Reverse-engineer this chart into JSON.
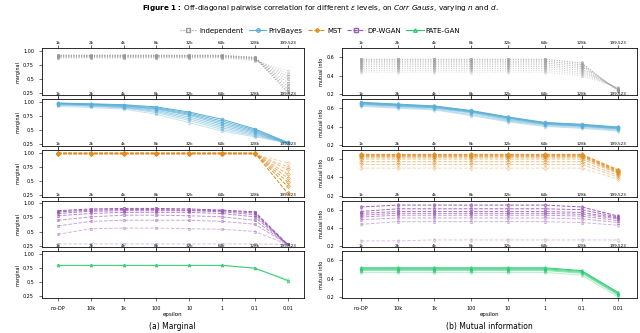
{
  "title_bold": "Figure 1:",
  "title_rest": " Off-diagonal pairwise correlation for different $\\epsilon$ levels, on $\\mathit{Corr\\ Gauss}$, varying $n$ and $d$.",
  "legend_labels": [
    "Independent",
    "PrivBayes",
    "MST",
    "DP-WGAN",
    "PATE-GAN"
  ],
  "row_colors": [
    "#999999",
    "#5bafd6",
    "#e08c20",
    "#9b59b6",
    "#2ecc71"
  ],
  "row_linestyles": [
    "dotted",
    "solid",
    "dashed",
    "dashed",
    "solid"
  ],
  "row_markers": [
    "s",
    "o",
    "D",
    "s",
    "^"
  ],
  "xlabel": "epsilon",
  "xtick_labels_bottom": [
    "no-DP",
    "10k",
    "1k",
    "100",
    "10",
    "1",
    "0.1",
    "0.01"
  ],
  "xtick_labels_top": [
    "1k",
    "2k",
    "4k",
    "8k",
    "32k",
    "64k",
    "128k",
    "199,523"
  ],
  "ylabel_marginal": "marginal",
  "ylabel_mutual": "mutual info",
  "subtitle_a": "(a) Marginal",
  "subtitle_b": "(b) Mutual information",
  "background": "#ffffff",
  "marginal_data": [
    {
      "lines": [
        [
          0.875,
          0.875,
          0.875,
          0.875,
          0.875,
          0.875,
          0.83,
          0.65
        ],
        [
          0.885,
          0.885,
          0.885,
          0.885,
          0.885,
          0.885,
          0.84,
          0.6
        ],
        [
          0.892,
          0.892,
          0.892,
          0.892,
          0.892,
          0.892,
          0.85,
          0.55
        ],
        [
          0.9,
          0.9,
          0.9,
          0.9,
          0.9,
          0.9,
          0.86,
          0.5
        ],
        [
          0.908,
          0.908,
          0.908,
          0.908,
          0.908,
          0.908,
          0.87,
          0.44
        ],
        [
          0.913,
          0.913,
          0.913,
          0.913,
          0.913,
          0.913,
          0.875,
          0.38
        ],
        [
          0.92,
          0.92,
          0.92,
          0.92,
          0.92,
          0.92,
          0.88,
          0.32
        ],
        [
          0.927,
          0.927,
          0.927,
          0.927,
          0.927,
          0.927,
          0.89,
          0.27
        ]
      ],
      "ylim": [
        0.22,
        1.05
      ],
      "yticks": [
        0.25,
        0.5,
        0.75,
        1.0
      ]
    },
    {
      "lines": [
        [
          0.92,
          0.9,
          0.87,
          0.78,
          0.63,
          0.48,
          0.38,
          0.27
        ],
        [
          0.94,
          0.92,
          0.89,
          0.81,
          0.67,
          0.51,
          0.4,
          0.27
        ],
        [
          0.95,
          0.93,
          0.9,
          0.83,
          0.7,
          0.54,
          0.42,
          0.27
        ],
        [
          0.96,
          0.94,
          0.91,
          0.85,
          0.73,
          0.57,
          0.44,
          0.27
        ],
        [
          0.965,
          0.95,
          0.92,
          0.87,
          0.76,
          0.6,
          0.46,
          0.27
        ],
        [
          0.97,
          0.955,
          0.93,
          0.88,
          0.78,
          0.63,
          0.48,
          0.27
        ],
        [
          0.975,
          0.96,
          0.94,
          0.895,
          0.8,
          0.66,
          0.5,
          0.28
        ],
        [
          0.98,
          0.965,
          0.95,
          0.91,
          0.82,
          0.69,
          0.52,
          0.28
        ]
      ],
      "ylim": [
        0.22,
        1.05
      ],
      "yticks": [
        0.25,
        0.5,
        0.75,
        1.0
      ]
    },
    {
      "lines": [
        [
          0.97,
          0.97,
          0.97,
          0.97,
          0.97,
          0.97,
          0.97,
          0.82
        ],
        [
          0.975,
          0.975,
          0.975,
          0.975,
          0.975,
          0.975,
          0.975,
          0.75
        ],
        [
          0.978,
          0.978,
          0.978,
          0.978,
          0.978,
          0.978,
          0.978,
          0.7
        ],
        [
          0.981,
          0.981,
          0.981,
          0.981,
          0.981,
          0.981,
          0.981,
          0.62
        ],
        [
          0.984,
          0.984,
          0.984,
          0.984,
          0.984,
          0.984,
          0.984,
          0.55
        ],
        [
          0.987,
          0.987,
          0.987,
          0.987,
          0.987,
          0.987,
          0.987,
          0.48
        ],
        [
          0.99,
          0.99,
          0.99,
          0.99,
          0.99,
          0.99,
          0.99,
          0.4
        ],
        [
          0.993,
          0.993,
          0.993,
          0.993,
          0.993,
          0.993,
          0.993,
          0.28
        ]
      ],
      "ylim": [
        0.22,
        1.05
      ],
      "yticks": [
        0.25,
        0.5,
        0.75,
        1.0
      ]
    },
    {
      "lines": [
        [
          0.28,
          0.28,
          0.28,
          0.28,
          0.28,
          0.28,
          0.28,
          0.27
        ],
        [
          0.45,
          0.55,
          0.56,
          0.56,
          0.55,
          0.54,
          0.5,
          0.27
        ],
        [
          0.6,
          0.68,
          0.7,
          0.7,
          0.7,
          0.68,
          0.63,
          0.27
        ],
        [
          0.7,
          0.76,
          0.79,
          0.79,
          0.78,
          0.76,
          0.7,
          0.27
        ],
        [
          0.78,
          0.82,
          0.84,
          0.84,
          0.84,
          0.82,
          0.76,
          0.27
        ],
        [
          0.82,
          0.86,
          0.87,
          0.87,
          0.87,
          0.85,
          0.8,
          0.27
        ],
        [
          0.85,
          0.88,
          0.89,
          0.89,
          0.88,
          0.87,
          0.83,
          0.27
        ],
        [
          0.87,
          0.9,
          0.91,
          0.91,
          0.9,
          0.88,
          0.85,
          0.27
        ]
      ],
      "ylim": [
        0.22,
        1.05
      ],
      "yticks": [
        0.25,
        0.5,
        0.75,
        1.0
      ]
    },
    {
      "lines": [
        [
          0.8,
          0.8,
          0.8,
          0.8,
          0.8,
          0.8,
          0.75,
          0.55
        ],
        [
          0.8,
          0.8,
          0.8,
          0.8,
          0.8,
          0.8,
          0.75,
          0.53
        ]
      ],
      "ylim": [
        0.22,
        1.05
      ],
      "yticks": [
        0.25,
        0.5,
        0.75,
        1.0
      ]
    }
  ],
  "mutual_data": [
    {
      "lines": [
        [
          0.44,
          0.44,
          0.44,
          0.44,
          0.44,
          0.44,
          0.4,
          0.27
        ],
        [
          0.46,
          0.46,
          0.46,
          0.46,
          0.46,
          0.46,
          0.42,
          0.27
        ],
        [
          0.48,
          0.48,
          0.48,
          0.48,
          0.48,
          0.48,
          0.44,
          0.26
        ],
        [
          0.5,
          0.5,
          0.5,
          0.5,
          0.5,
          0.5,
          0.46,
          0.26
        ],
        [
          0.52,
          0.52,
          0.52,
          0.52,
          0.52,
          0.52,
          0.48,
          0.25
        ],
        [
          0.54,
          0.54,
          0.54,
          0.54,
          0.54,
          0.54,
          0.5,
          0.25
        ],
        [
          0.56,
          0.56,
          0.56,
          0.56,
          0.56,
          0.56,
          0.52,
          0.24
        ],
        [
          0.58,
          0.58,
          0.58,
          0.58,
          0.58,
          0.58,
          0.54,
          0.23
        ]
      ],
      "ylim": [
        0.19,
        0.7
      ],
      "yticks": [
        0.2,
        0.4,
        0.6
      ]
    },
    {
      "lines": [
        [
          0.62,
          0.6,
          0.58,
          0.52,
          0.45,
          0.4,
          0.38,
          0.35
        ],
        [
          0.63,
          0.61,
          0.59,
          0.53,
          0.46,
          0.41,
          0.39,
          0.36
        ],
        [
          0.64,
          0.62,
          0.6,
          0.545,
          0.47,
          0.42,
          0.4,
          0.37
        ],
        [
          0.645,
          0.625,
          0.605,
          0.555,
          0.48,
          0.425,
          0.405,
          0.375
        ],
        [
          0.65,
          0.63,
          0.61,
          0.56,
          0.49,
          0.43,
          0.41,
          0.38
        ],
        [
          0.655,
          0.635,
          0.615,
          0.565,
          0.495,
          0.435,
          0.415,
          0.385
        ],
        [
          0.66,
          0.64,
          0.62,
          0.57,
          0.5,
          0.44,
          0.42,
          0.39
        ],
        [
          0.665,
          0.645,
          0.625,
          0.575,
          0.505,
          0.445,
          0.425,
          0.395
        ]
      ],
      "ylim": [
        0.19,
        0.7
      ],
      "yticks": [
        0.2,
        0.4,
        0.6
      ]
    },
    {
      "lines": [
        [
          0.5,
          0.5,
          0.5,
          0.5,
          0.5,
          0.5,
          0.5,
          0.38
        ],
        [
          0.54,
          0.54,
          0.54,
          0.54,
          0.54,
          0.54,
          0.54,
          0.4
        ],
        [
          0.57,
          0.57,
          0.57,
          0.57,
          0.57,
          0.57,
          0.57,
          0.42
        ],
        [
          0.6,
          0.6,
          0.6,
          0.6,
          0.6,
          0.6,
          0.6,
          0.44
        ],
        [
          0.62,
          0.62,
          0.62,
          0.62,
          0.62,
          0.62,
          0.62,
          0.45
        ],
        [
          0.63,
          0.63,
          0.63,
          0.63,
          0.63,
          0.63,
          0.63,
          0.46
        ],
        [
          0.64,
          0.64,
          0.64,
          0.64,
          0.64,
          0.64,
          0.64,
          0.47
        ],
        [
          0.65,
          0.65,
          0.65,
          0.65,
          0.65,
          0.65,
          0.65,
          0.48
        ]
      ],
      "ylim": [
        0.19,
        0.7
      ],
      "yticks": [
        0.2,
        0.4,
        0.6
      ]
    },
    {
      "lines": [
        [
          0.26,
          0.26,
          0.27,
          0.27,
          0.27,
          0.27,
          0.27,
          0.27
        ],
        [
          0.44,
          0.47,
          0.47,
          0.47,
          0.47,
          0.47,
          0.46,
          0.43
        ],
        [
          0.49,
          0.51,
          0.51,
          0.51,
          0.51,
          0.51,
          0.5,
          0.46
        ],
        [
          0.52,
          0.54,
          0.54,
          0.54,
          0.54,
          0.54,
          0.53,
          0.48
        ],
        [
          0.54,
          0.56,
          0.56,
          0.56,
          0.56,
          0.56,
          0.55,
          0.5
        ],
        [
          0.56,
          0.58,
          0.58,
          0.58,
          0.58,
          0.58,
          0.57,
          0.51
        ],
        [
          0.58,
          0.61,
          0.61,
          0.61,
          0.61,
          0.61,
          0.6,
          0.52
        ],
        [
          0.63,
          0.65,
          0.65,
          0.65,
          0.65,
          0.65,
          0.63,
          0.53
        ]
      ],
      "ylim": [
        0.19,
        0.7
      ],
      "yticks": [
        0.2,
        0.4,
        0.6
      ]
    },
    {
      "lines": [
        [
          0.47,
          0.47,
          0.47,
          0.47,
          0.47,
          0.47,
          0.44,
          0.2
        ],
        [
          0.49,
          0.49,
          0.49,
          0.49,
          0.49,
          0.49,
          0.46,
          0.22
        ],
        [
          0.5,
          0.5,
          0.5,
          0.5,
          0.5,
          0.5,
          0.47,
          0.23
        ],
        [
          0.51,
          0.51,
          0.51,
          0.51,
          0.51,
          0.51,
          0.48,
          0.24
        ],
        [
          0.52,
          0.52,
          0.52,
          0.52,
          0.52,
          0.52,
          0.49,
          0.25
        ]
      ],
      "ylim": [
        0.19,
        0.7
      ],
      "yticks": [
        0.2,
        0.4,
        0.6
      ]
    }
  ]
}
